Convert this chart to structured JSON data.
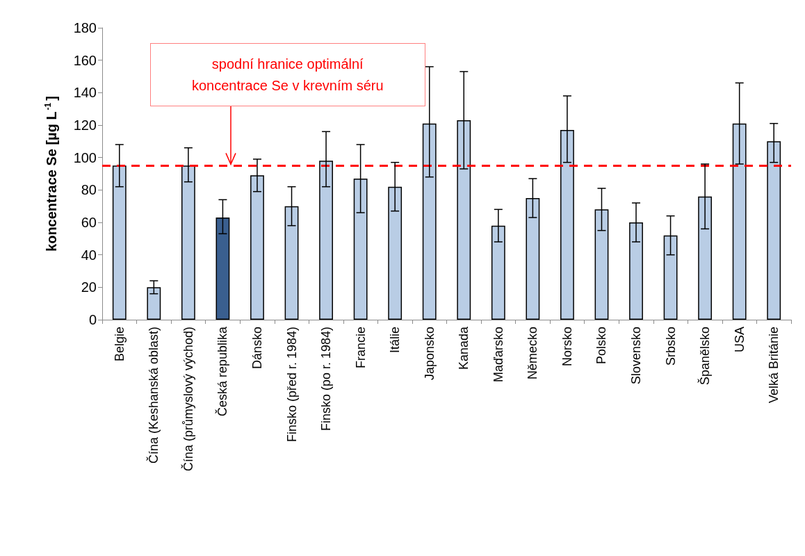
{
  "chart_data": {
    "type": "bar",
    "ylabel": "koncentrace Se [µg L$^{-1}$]",
    "categories": [
      "Belgie",
      "Čína (Keshanská oblast)",
      "Čína (průmyslový východ)",
      "Česká republika",
      "Dánsko",
      "Finsko (před r. 1984)",
      "Finsko (po r. 1984)",
      "Francie",
      "Itálie",
      "Japonsko",
      "Kanada",
      "Maďarsko",
      "Německo",
      "Norsko",
      "Polsko",
      "Slovensko",
      "Srbsko",
      "Španělsko",
      "USA",
      "Velká Británie"
    ],
    "values": [
      95,
      20,
      95,
      63,
      89,
      70,
      98,
      87,
      82,
      121,
      123,
      58,
      75,
      117,
      68,
      60,
      52,
      76,
      121,
      110
    ],
    "colors": [
      "#b9cde5",
      "#b9cde5",
      "#b9cde5",
      "#3a5f8f",
      "#b9cde5",
      "#b9cde5",
      "#b9cde5",
      "#b9cde5",
      "#b9cde5",
      "#b9cde5",
      "#b9cde5",
      "#b9cde5",
      "#b9cde5",
      "#b9cde5",
      "#b9cde5",
      "#b9cde5",
      "#b9cde5",
      "#b9cde5",
      "#b9cde5",
      "#b9cde5"
    ],
    "errors": [
      [
        82,
        108
      ],
      [
        16,
        24
      ],
      [
        85,
        106
      ],
      [
        53,
        74
      ],
      [
        79,
        99
      ],
      [
        58,
        82
      ],
      [
        82,
        116
      ],
      [
        66,
        108
      ],
      [
        67,
        97
      ],
      [
        88,
        156
      ],
      [
        93,
        153
      ],
      [
        48,
        68
      ],
      [
        63,
        87
      ],
      [
        97,
        138
      ],
      [
        55,
        81
      ],
      [
        48,
        72
      ],
      [
        40,
        64
      ],
      [
        56,
        96
      ],
      [
        96,
        146
      ],
      [
        97,
        121
      ]
    ],
    "ylim": [
      0,
      180
    ],
    "yticks": [
      0,
      20,
      40,
      60,
      80,
      100,
      120,
      140,
      160,
      180
    ],
    "grid": false,
    "ref_lines": [
      {
        "axis": "y",
        "value": 95,
        "label": "spodní hranice optimální\nkoncentrace Se v krevním séru",
        "color": "#ff0000",
        "line_style": "dashed"
      }
    ]
  }
}
